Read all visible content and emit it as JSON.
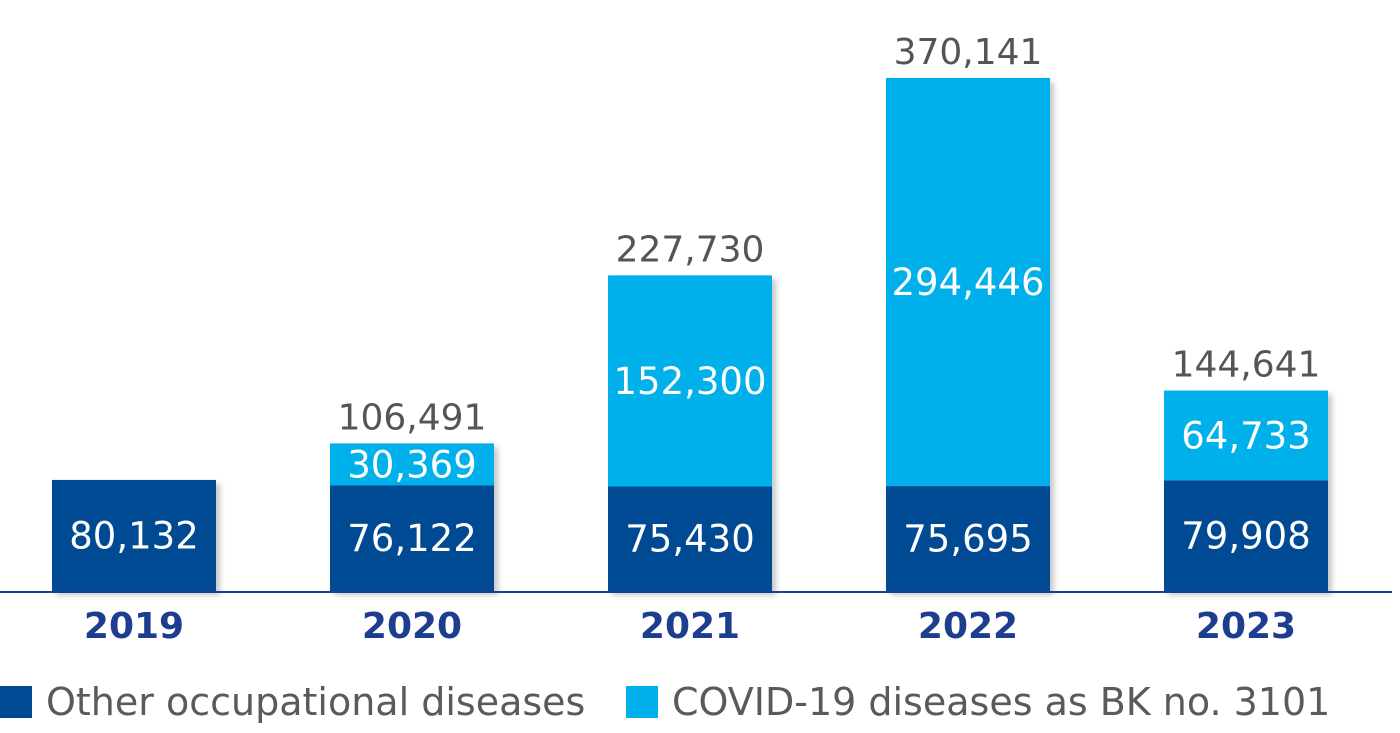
{
  "chart_data": {
    "type": "bar",
    "stacked": true,
    "categories": [
      "2019",
      "2020",
      "2021",
      "2022",
      "2023"
    ],
    "series": [
      {
        "name": "Other occupational diseases",
        "values": [
          80132,
          76122,
          75430,
          75695,
          79908
        ],
        "color": "#004a93"
      },
      {
        "name": "COVID-19 diseases as BK no. 3101",
        "values": [
          0,
          30369,
          152300,
          294446,
          64733
        ],
        "color": "#00b0ea"
      }
    ],
    "segment_labels": [
      [
        "80,132",
        "76,122",
        "75,430",
        "75,695",
        "79,908"
      ],
      [
        "",
        "30,369",
        "152,300",
        "294,446",
        "64,733"
      ]
    ],
    "total_labels": [
      "",
      "106,491",
      "227,730",
      "370,141",
      "144,641"
    ],
    "totals": [
      80132,
      106491,
      227730,
      370141,
      144641
    ],
    "ylim": [
      0,
      370141
    ],
    "grid": false,
    "legend_position": "bottom"
  },
  "colors": {
    "dark_blue": "#004a93",
    "light_blue": "#00b0ea",
    "category_text": "#1d3d8f",
    "total_text": "#555555",
    "axis": "#1d3d8f"
  }
}
